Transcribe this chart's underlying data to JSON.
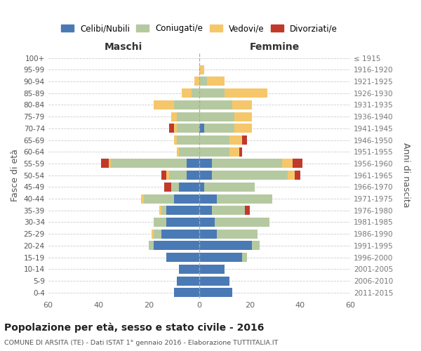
{
  "age_groups": [
    "0-4",
    "5-9",
    "10-14",
    "15-19",
    "20-24",
    "25-29",
    "30-34",
    "35-39",
    "40-44",
    "45-49",
    "50-54",
    "55-59",
    "60-64",
    "65-69",
    "70-74",
    "75-79",
    "80-84",
    "85-89",
    "90-94",
    "95-99",
    "100+"
  ],
  "birth_years": [
    "2011-2015",
    "2006-2010",
    "2001-2005",
    "1996-2000",
    "1991-1995",
    "1986-1990",
    "1981-1985",
    "1976-1980",
    "1971-1975",
    "1966-1970",
    "1961-1965",
    "1956-1960",
    "1951-1955",
    "1946-1950",
    "1941-1945",
    "1936-1940",
    "1931-1935",
    "1926-1930",
    "1921-1925",
    "1916-1920",
    "≤ 1915"
  ],
  "maschi": {
    "celibi": [
      10,
      9,
      8,
      13,
      18,
      15,
      13,
      13,
      10,
      8,
      5,
      5,
      0,
      0,
      0,
      0,
      0,
      0,
      0,
      0,
      0
    ],
    "coniugati": [
      0,
      0,
      0,
      0,
      2,
      3,
      5,
      2,
      12,
      3,
      7,
      30,
      8,
      9,
      9,
      9,
      10,
      3,
      0,
      0,
      0
    ],
    "vedovi": [
      0,
      0,
      0,
      0,
      0,
      1,
      0,
      1,
      1,
      0,
      1,
      1,
      1,
      1,
      1,
      2,
      8,
      4,
      2,
      0,
      0
    ],
    "divorziati": [
      0,
      0,
      0,
      0,
      0,
      0,
      0,
      0,
      0,
      3,
      2,
      3,
      0,
      0,
      2,
      0,
      0,
      0,
      0,
      0,
      0
    ]
  },
  "femmine": {
    "nubili": [
      13,
      12,
      10,
      17,
      21,
      7,
      6,
      5,
      7,
      2,
      5,
      5,
      0,
      0,
      2,
      0,
      0,
      0,
      0,
      0,
      0
    ],
    "coniugate": [
      0,
      0,
      0,
      2,
      3,
      16,
      22,
      13,
      22,
      20,
      30,
      28,
      12,
      12,
      12,
      14,
      13,
      10,
      3,
      0,
      0
    ],
    "vedove": [
      0,
      0,
      0,
      0,
      0,
      0,
      0,
      0,
      0,
      0,
      3,
      4,
      4,
      5,
      7,
      7,
      8,
      17,
      7,
      2,
      0
    ],
    "divorziate": [
      0,
      0,
      0,
      0,
      0,
      0,
      0,
      2,
      0,
      0,
      2,
      4,
      1,
      2,
      0,
      0,
      0,
      0,
      0,
      0,
      0
    ]
  },
  "colors": {
    "celibi": "#4a7ab5",
    "coniugati": "#b5c9a0",
    "vedovi": "#f5c76a",
    "divorziati": "#c0392b"
  },
  "xlim": 60,
  "title": "Popolazione per età, sesso e stato civile - 2016",
  "subtitle": "COMUNE DI ARSITA (TE) - Dati ISTAT 1° gennaio 2016 - Elaborazione TUTTITALIA.IT",
  "ylabel_left": "Fasce di età",
  "ylabel_right": "Anni di nascita",
  "label_maschi": "Maschi",
  "label_femmine": "Femmine",
  "legend_labels": [
    "Celibi/Nubili",
    "Coniugati/e",
    "Vedovi/e",
    "Divorziati/e"
  ]
}
